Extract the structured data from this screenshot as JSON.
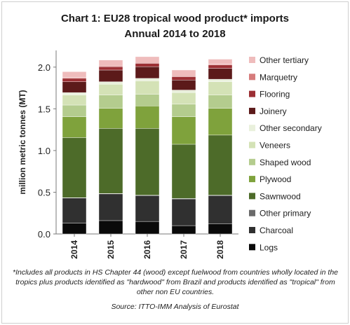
{
  "chart_data": {
    "type": "bar",
    "stacked": true,
    "title": "Chart 1: EU28 tropical wood product* imports",
    "subtitle": "Annual 2014 to 2018",
    "xlabel": "",
    "ylabel": "million metric tonnes (MT)",
    "ylim": [
      0,
      2.2
    ],
    "yticks": [
      "0.0",
      "0.5",
      "1.0",
      "1.5",
      "2.0"
    ],
    "grid": true,
    "legend_position": "right",
    "categories": [
      "2014",
      "2015",
      "2016",
      "2017",
      "2018"
    ],
    "series": [
      {
        "name": "Logs",
        "color": "#0a0a0a",
        "values": [
          0.13,
          0.16,
          0.15,
          0.1,
          0.12
        ]
      },
      {
        "name": "Charcoal",
        "color": "#303030",
        "values": [
          0.3,
          0.32,
          0.31,
          0.32,
          0.34
        ]
      },
      {
        "name": "Other primary",
        "color": "#6a6a6a",
        "values": [
          0.005,
          0.005,
          0.005,
          0.005,
          0.005
        ]
      },
      {
        "name": "Sawnwood",
        "color": "#4d6b29",
        "values": [
          0.72,
          0.78,
          0.8,
          0.65,
          0.72
        ]
      },
      {
        "name": "Plywood",
        "color": "#7fa23c",
        "values": [
          0.25,
          0.24,
          0.27,
          0.33,
          0.32
        ]
      },
      {
        "name": "Shaped wood",
        "color": "#b4cc8e",
        "values": [
          0.14,
          0.16,
          0.14,
          0.15,
          0.16
        ]
      },
      {
        "name": "Veneers",
        "color": "#d4e2b6",
        "values": [
          0.12,
          0.13,
          0.16,
          0.14,
          0.16
        ]
      },
      {
        "name": "Other secondary",
        "color": "#e9f0dc",
        "values": [
          0.03,
          0.03,
          0.03,
          0.03,
          0.03
        ]
      },
      {
        "name": "Joinery",
        "color": "#5c1a1a",
        "values": [
          0.13,
          0.14,
          0.14,
          0.12,
          0.13
        ]
      },
      {
        "name": "Flooring",
        "color": "#9c2f34",
        "values": [
          0.04,
          0.04,
          0.04,
          0.04,
          0.04
        ]
      },
      {
        "name": "Marquetry",
        "color": "#d67c7c",
        "values": [
          0.01,
          0.01,
          0.01,
          0.01,
          0.01
        ]
      },
      {
        "name": "Other tertiary",
        "color": "#efbcbc",
        "values": [
          0.07,
          0.07,
          0.07,
          0.07,
          0.06
        ]
      }
    ]
  },
  "footnote": "*Includes all products in HS Chapter 44 (wood) except fuelwood from countries wholly located in the tropics plus products identified as \"hardwood\" from Brazil and products identified as \"tropical\" from other non EU countries.",
  "source": "Source: ITTO-IMM Analysis of Eurostat"
}
